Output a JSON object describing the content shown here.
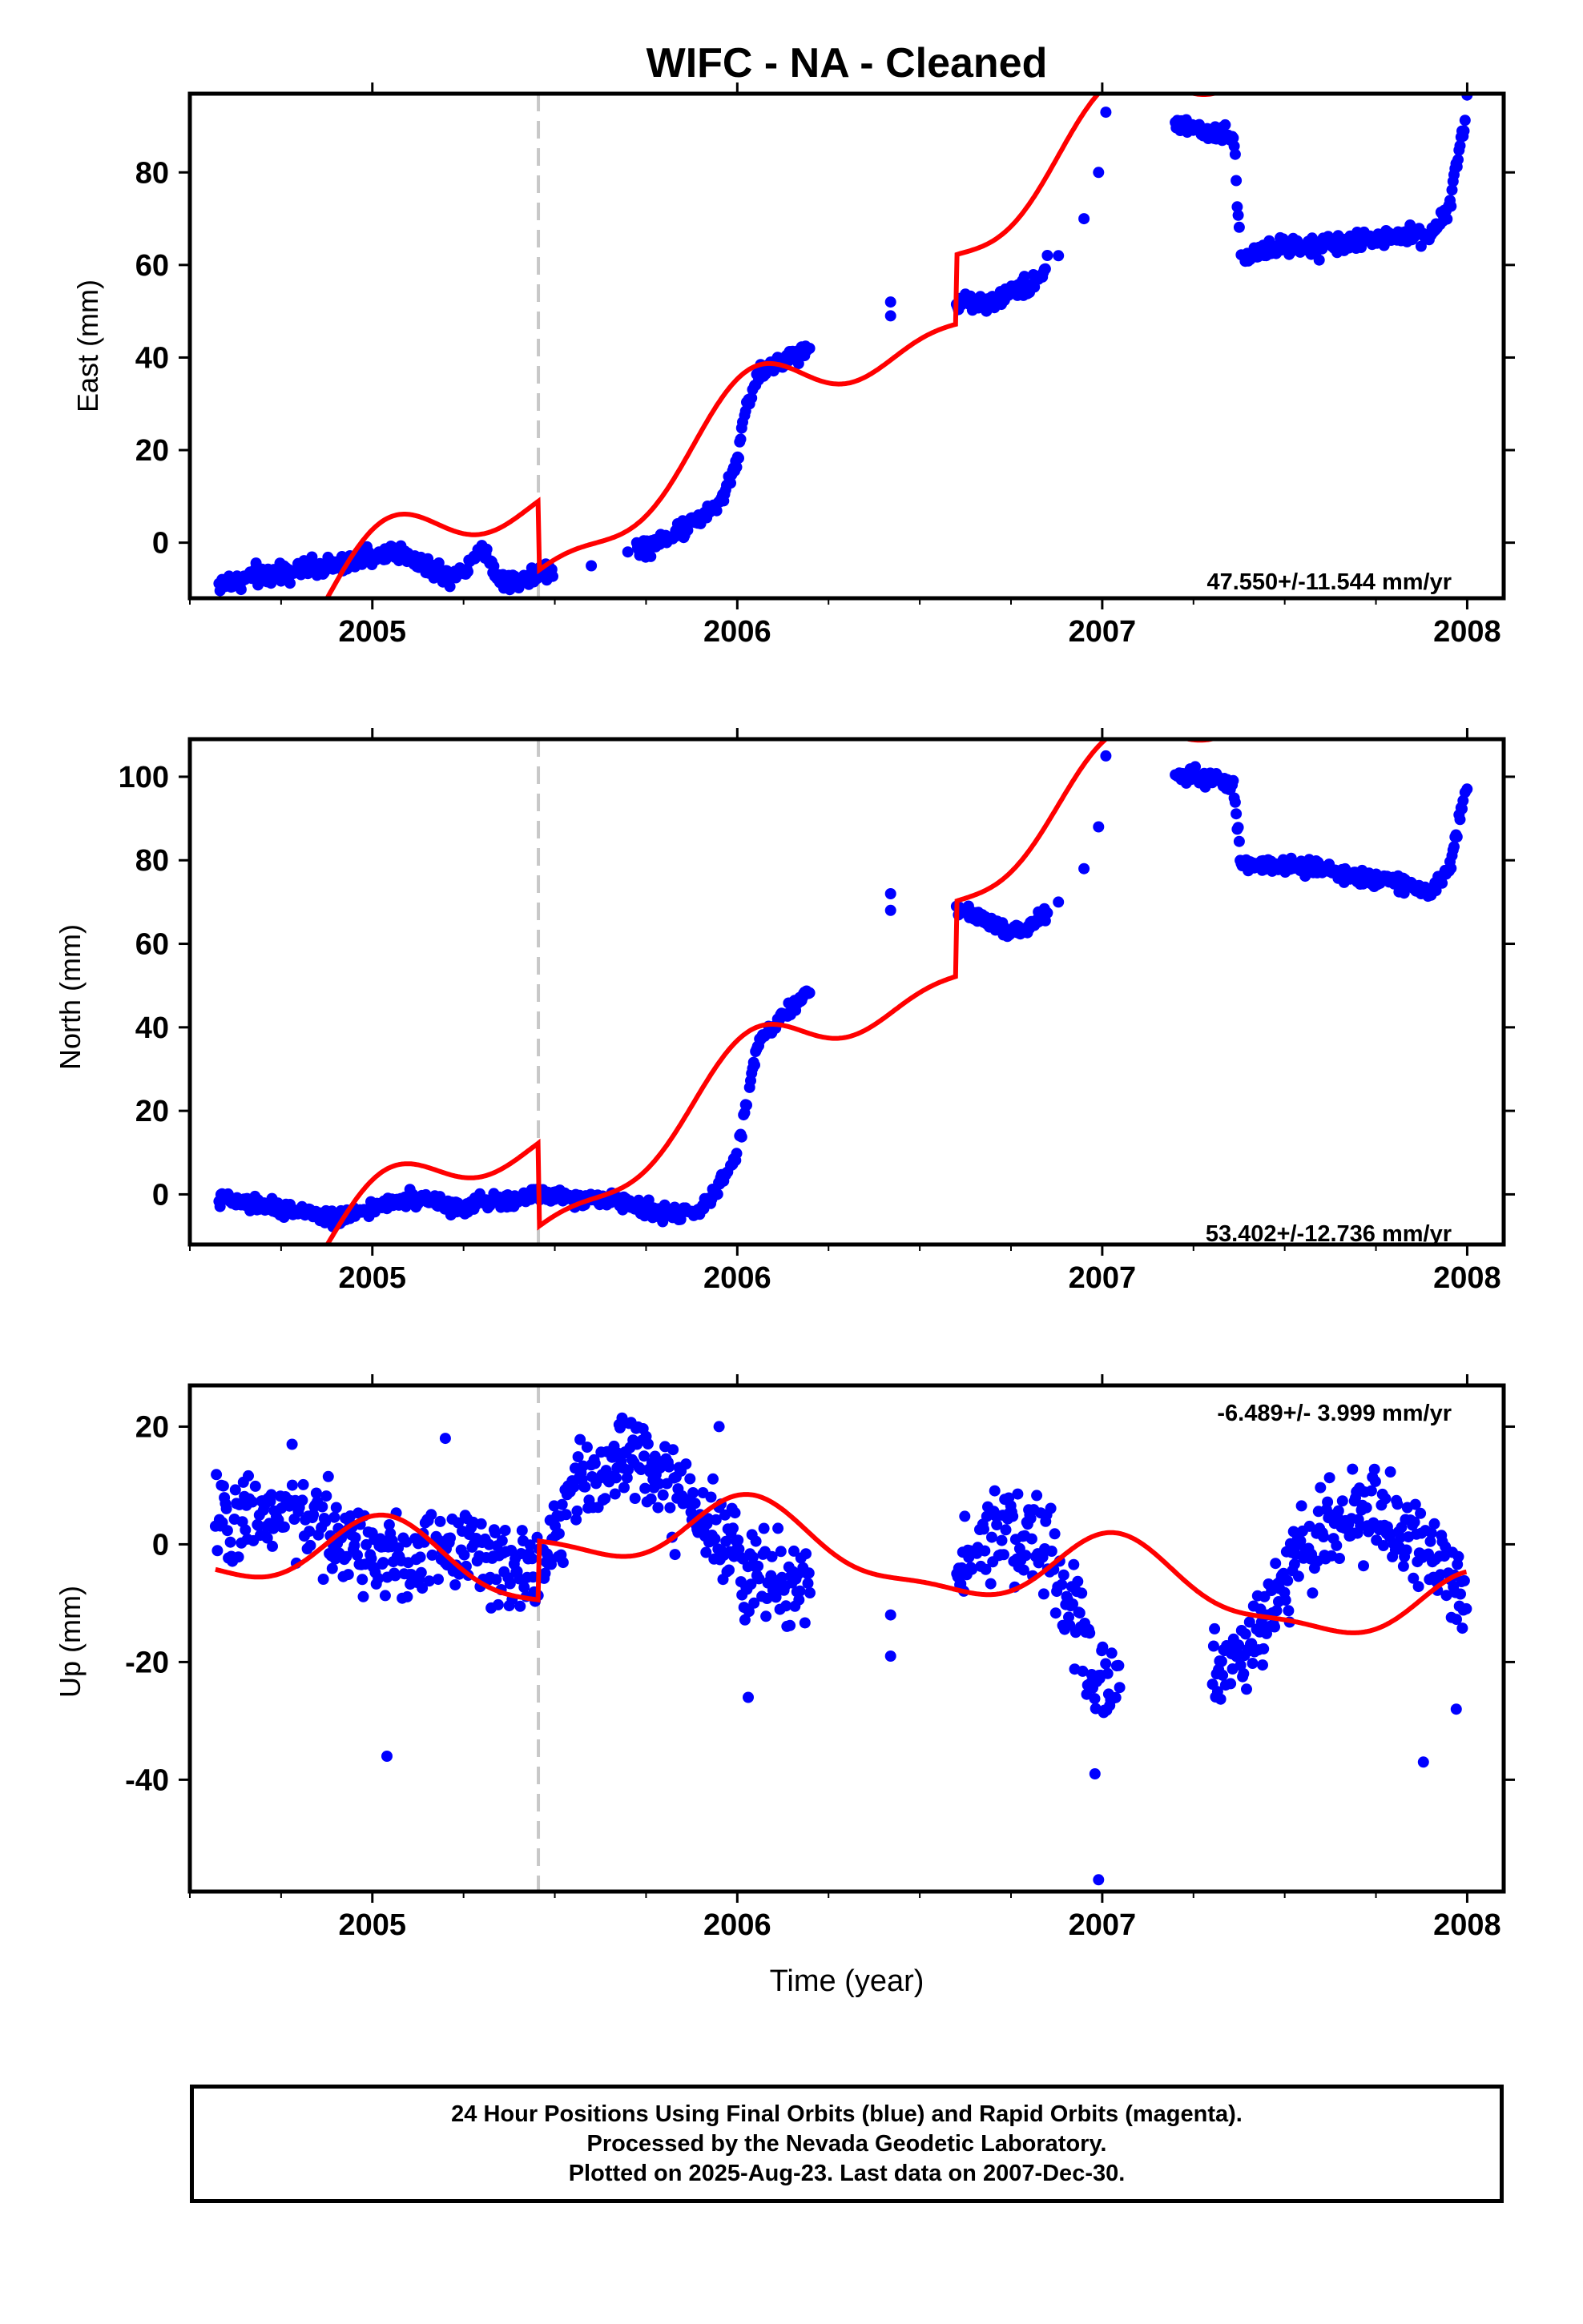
{
  "figure": {
    "title": "WIFC  - NA - Cleaned",
    "x_axis_title": "Time (year)",
    "caption_lines": [
      "24 Hour Positions Using Final Orbits (blue) and Rapid Orbits (magenta).",
      "Processed by the Nevada Geodetic Laboratory.",
      "Plotted on 2025-Aug-23. Last data on 2007-Dec-30."
    ]
  },
  "chart_data": [
    {
      "type": "scatter",
      "panel": "east",
      "ylabel": "East (mm)",
      "xlim": [
        2004.5,
        2008.1
      ],
      "ylim": [
        -12,
        97
      ],
      "xticks": [
        2005,
        2006,
        2007,
        2008
      ],
      "yticks": [
        0,
        20,
        40,
        60,
        80
      ],
      "rate_label": "47.550+/-11.544 mm/yr",
      "rate_position": "bottom-right",
      "event_line_x": 2005.455,
      "points_color": "#0000ff",
      "model_color": "#ff0000",
      "grid": false,
      "observations": {
        "x_nodes": [
          2004.58,
          2004.7,
          2004.8,
          2004.9,
          2005.0,
          2005.05,
          2005.1,
          2005.2,
          2005.25,
          2005.3,
          2005.35,
          2005.4,
          2005.455,
          2005.5,
          2005.6,
          2005.7,
          2005.75,
          2005.85,
          2005.95,
          2006.0,
          2006.02,
          2006.06,
          2006.42,
          2006.42,
          2006.63,
          2006.7,
          2006.75,
          2006.8,
          2006.88,
          2006.95,
          2006.99,
          2007.01,
          2007.36,
          2007.38,
          2007.4,
          2007.5,
          2007.6,
          2007.7,
          2007.8,
          2007.9,
          2007.95,
          2008.0
        ],
        "y_nodes": [
          -9,
          -7,
          -6,
          -5,
          -3,
          -2,
          -3,
          -7,
          -6,
          -1,
          -8,
          -8,
          -7,
          -6,
          -5,
          -2,
          -1,
          3,
          8,
          18,
          28,
          37,
          49,
          52,
          52,
          52,
          55,
          55,
          62,
          70,
          80,
          93,
          88,
          61,
          62,
          64,
          64,
          65,
          66,
          67,
          72,
          95
        ],
        "segment_breaks": [
          2005.5,
          2005.72,
          2006.2,
          2006.6,
          2006.85,
          2007.2
        ],
        "noise_mm": 1.8
      },
      "model": {
        "x_range": [
          2004.55,
          2008.05
        ],
        "breaks": [
          2005.455,
          2006.6,
          2007.4
        ],
        "offsets": [
          0,
          -15,
          15,
          0
        ],
        "rate_mm_per_yr": 47.55,
        "annual_amplitude": 8,
        "semiannual_amplitude": 4,
        "base": -30
      }
    },
    {
      "type": "scatter",
      "panel": "north",
      "ylabel": "North (mm)",
      "xlim": [
        2004.5,
        2008.1
      ],
      "ylim": [
        -12,
        109
      ],
      "xticks": [
        2005,
        2006,
        2007,
        2008
      ],
      "yticks": [
        0,
        20,
        40,
        60,
        80,
        100
      ],
      "rate_label": "53.402+/-12.736 mm/yr",
      "rate_position": "bottom-right",
      "event_line_x": 2005.455,
      "points_color": "#0000ff",
      "model_color": "#ff0000",
      "grid": false,
      "observations": {
        "x_nodes": [
          2004.58,
          2004.7,
          2004.8,
          2004.9,
          2005.0,
          2005.1,
          2005.2,
          2005.25,
          2005.3,
          2005.35,
          2005.4,
          2005.455,
          2005.6,
          2005.7,
          2005.8,
          2005.9,
          2005.95,
          2006.0,
          2006.02,
          2006.06,
          2006.42,
          2006.42,
          2006.63,
          2006.7,
          2006.75,
          2006.8,
          2006.88,
          2006.95,
          2006.99,
          2007.01,
          2007.36,
          2007.38,
          2007.4,
          2007.5,
          2007.6,
          2007.7,
          2007.8,
          2007.9,
          2007.95,
          2008.0
        ],
        "y_nodes": [
          -1,
          -3,
          -4,
          -6,
          -3,
          -1,
          -2,
          -4,
          -1,
          -2,
          -1,
          0,
          -1,
          -2,
          -5,
          -4,
          2,
          10,
          20,
          37,
          68,
          72,
          68,
          65,
          63,
          64,
          70,
          78,
          88,
          105,
          98,
          80,
          79,
          79,
          78,
          76,
          75,
          72,
          78,
          98
        ],
        "segment_breaks": [
          2006.2,
          2006.6,
          2006.85,
          2007.2
        ],
        "noise_mm": 1.6
      },
      "model": {
        "x_range": [
          2004.55,
          2008.05
        ],
        "breaks": [
          2005.455,
          2006.6,
          2007.4
        ],
        "offsets": [
          0,
          -20,
          18,
          0
        ],
        "rate_mm_per_yr": 53.4,
        "annual_amplitude": 8,
        "semiannual_amplitude": 4,
        "base": -32
      }
    },
    {
      "type": "scatter",
      "panel": "up",
      "ylabel": "Up (mm)",
      "xlim": [
        2004.5,
        2008.1
      ],
      "ylim": [
        -59,
        27
      ],
      "xticks": [
        2005,
        2006,
        2007,
        2008
      ],
      "yticks": [
        -40,
        -20,
        0,
        20
      ],
      "rate_label": "-6.489+/- 3.999 mm/yr",
      "rate_position": "top-right",
      "event_line_x": 2005.455,
      "points_color": "#0000ff",
      "model_color": "#ff0000",
      "grid": false,
      "observations": {
        "x_nodes": [
          2004.57,
          2004.7,
          2004.8,
          2004.9,
          2005.0,
          2005.1,
          2005.2,
          2005.3,
          2005.4,
          2005.455,
          2005.55,
          2005.65,
          2005.75,
          2005.85,
          2005.95,
          2006.02,
          2006.42,
          2006.42,
          2006.63,
          2006.7,
          2006.8,
          2006.88,
          2006.95,
          2007.0,
          2007.36,
          2007.45,
          2007.55,
          2007.65,
          2007.75,
          2007.85,
          2007.95,
          2008.0
        ],
        "y_nodes": [
          3,
          6,
          4,
          2,
          -2,
          -4,
          0,
          -2,
          -6,
          -3,
          8,
          14,
          16,
          8,
          2,
          -5,
          -12,
          -19,
          -2,
          3,
          2,
          -5,
          -15,
          -25,
          -20,
          -12,
          0,
          4,
          6,
          2,
          -5,
          -10
        ],
        "segment_breaks": [
          2006.2,
          2006.6,
          2007.05,
          2007.3
        ],
        "noise_mm": 7,
        "outliers": [
          [
            2005.04,
            -36
          ],
          [
            2006.99,
            -57
          ],
          [
            2006.98,
            -39
          ],
          [
            2007.88,
            -37
          ],
          [
            2006.03,
            -26
          ],
          [
            2007.97,
            -28
          ],
          [
            2005.2,
            18
          ],
          [
            2004.78,
            17
          ],
          [
            2005.95,
            20
          ]
        ]
      },
      "model": {
        "x_range": [
          2004.57,
          2008.0
        ],
        "breaks": [
          2005.455
        ],
        "offsets": [
          0,
          10
        ],
        "rate_mm_per_yr": -6.489,
        "annual_amplitude": 6,
        "semiannual_amplitude": 2,
        "base": 0
      }
    }
  ]
}
